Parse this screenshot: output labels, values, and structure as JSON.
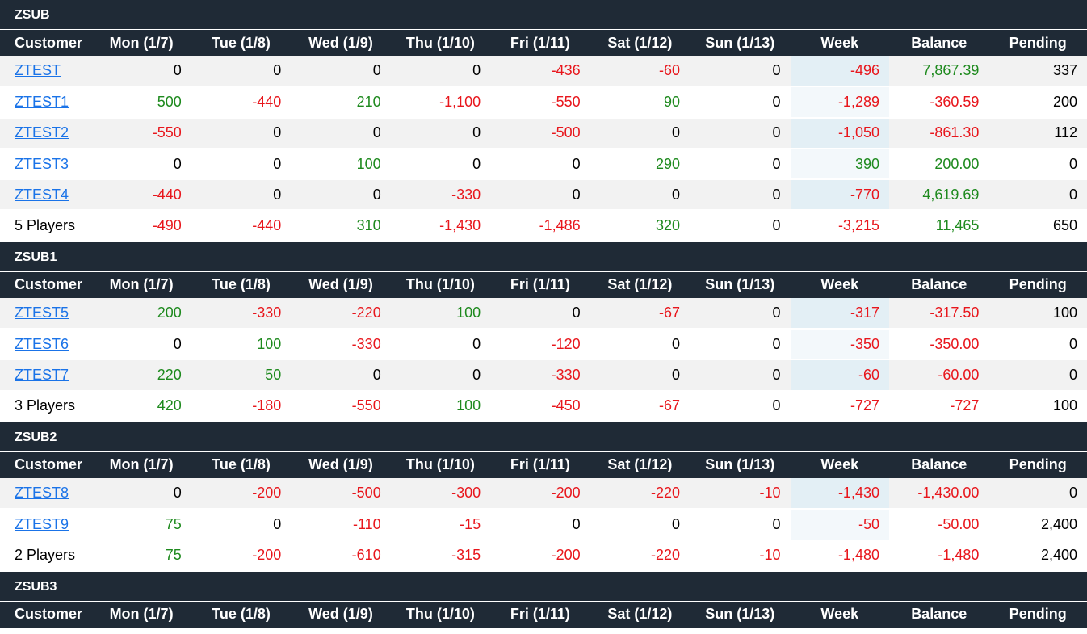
{
  "columns": [
    "Customer",
    "Mon (1/7)",
    "Tue (1/8)",
    "Wed (1/9)",
    "Thu (1/10)",
    "Fri (1/11)",
    "Sat (1/12)",
    "Sun (1/13)",
    "Week",
    "Balance",
    "Pending"
  ],
  "colors": {
    "positive": "#1e8a1e",
    "negative": "#e8161c",
    "header_bg": "#1f2a36",
    "link": "#1a73e8"
  },
  "groups": [
    {
      "name": "ZSUB",
      "rows": [
        {
          "customer": "ZTEST",
          "days": [
            "0",
            "0",
            "0",
            "0",
            "-436",
            "-60",
            "0"
          ],
          "week": "-496",
          "balance": "7,867.39",
          "pending": "337"
        },
        {
          "customer": "ZTEST1",
          "days": [
            "500",
            "-440",
            "210",
            "-1,100",
            "-550",
            "90",
            "0"
          ],
          "week": "-1,289",
          "balance": "-360.59",
          "pending": "200"
        },
        {
          "customer": "ZTEST2",
          "days": [
            "-550",
            "0",
            "0",
            "0",
            "-500",
            "0",
            "0"
          ],
          "week": "-1,050",
          "balance": "-861.30",
          "pending": "112"
        },
        {
          "customer": "ZTEST3",
          "days": [
            "0",
            "0",
            "100",
            "0",
            "0",
            "290",
            "0"
          ],
          "week": "390",
          "balance": "200.00",
          "pending": "0"
        },
        {
          "customer": "ZTEST4",
          "days": [
            "-440",
            "0",
            "0",
            "-330",
            "0",
            "0",
            "0"
          ],
          "week": "-770",
          "balance": "4,619.69",
          "pending": "0"
        }
      ],
      "total": {
        "label": "5 Players",
        "days": [
          "-490",
          "-440",
          "310",
          "-1,430",
          "-1,486",
          "320",
          "0"
        ],
        "week": "-3,215",
        "balance": "11,465",
        "pending": "650"
      }
    },
    {
      "name": "ZSUB1",
      "rows": [
        {
          "customer": "ZTEST5",
          "days": [
            "200",
            "-330",
            "-220",
            "100",
            "0",
            "-67",
            "0"
          ],
          "week": "-317",
          "balance": "-317.50",
          "pending": "100"
        },
        {
          "customer": "ZTEST6",
          "days": [
            "0",
            "100",
            "-330",
            "0",
            "-120",
            "0",
            "0"
          ],
          "week": "-350",
          "balance": "-350.00",
          "pending": "0"
        },
        {
          "customer": "ZTEST7",
          "days": [
            "220",
            "50",
            "0",
            "0",
            "-330",
            "0",
            "0"
          ],
          "week": "-60",
          "balance": "-60.00",
          "pending": "0"
        }
      ],
      "total": {
        "label": "3 Players",
        "days": [
          "420",
          "-180",
          "-550",
          "100",
          "-450",
          "-67",
          "0"
        ],
        "week": "-727",
        "balance": "-727",
        "pending": "100"
      }
    },
    {
      "name": "ZSUB2",
      "rows": [
        {
          "customer": "ZTEST8",
          "days": [
            "0",
            "-200",
            "-500",
            "-300",
            "-200",
            "-220",
            "-10"
          ],
          "week": "-1,430",
          "balance": "-1,430.00",
          "pending": "0"
        },
        {
          "customer": "ZTEST9",
          "days": [
            "75",
            "0",
            "-110",
            "-15",
            "0",
            "0",
            "0"
          ],
          "week": "-50",
          "balance": "-50.00",
          "pending": "2,400"
        }
      ],
      "total": {
        "label": "2 Players",
        "days": [
          "75",
          "-200",
          "-610",
          "-315",
          "-200",
          "-220",
          "-10"
        ],
        "week": "-1,480",
        "balance": "-1,480",
        "pending": "2,400"
      }
    },
    {
      "name": "ZSUB3",
      "rows": [],
      "total": null
    }
  ]
}
